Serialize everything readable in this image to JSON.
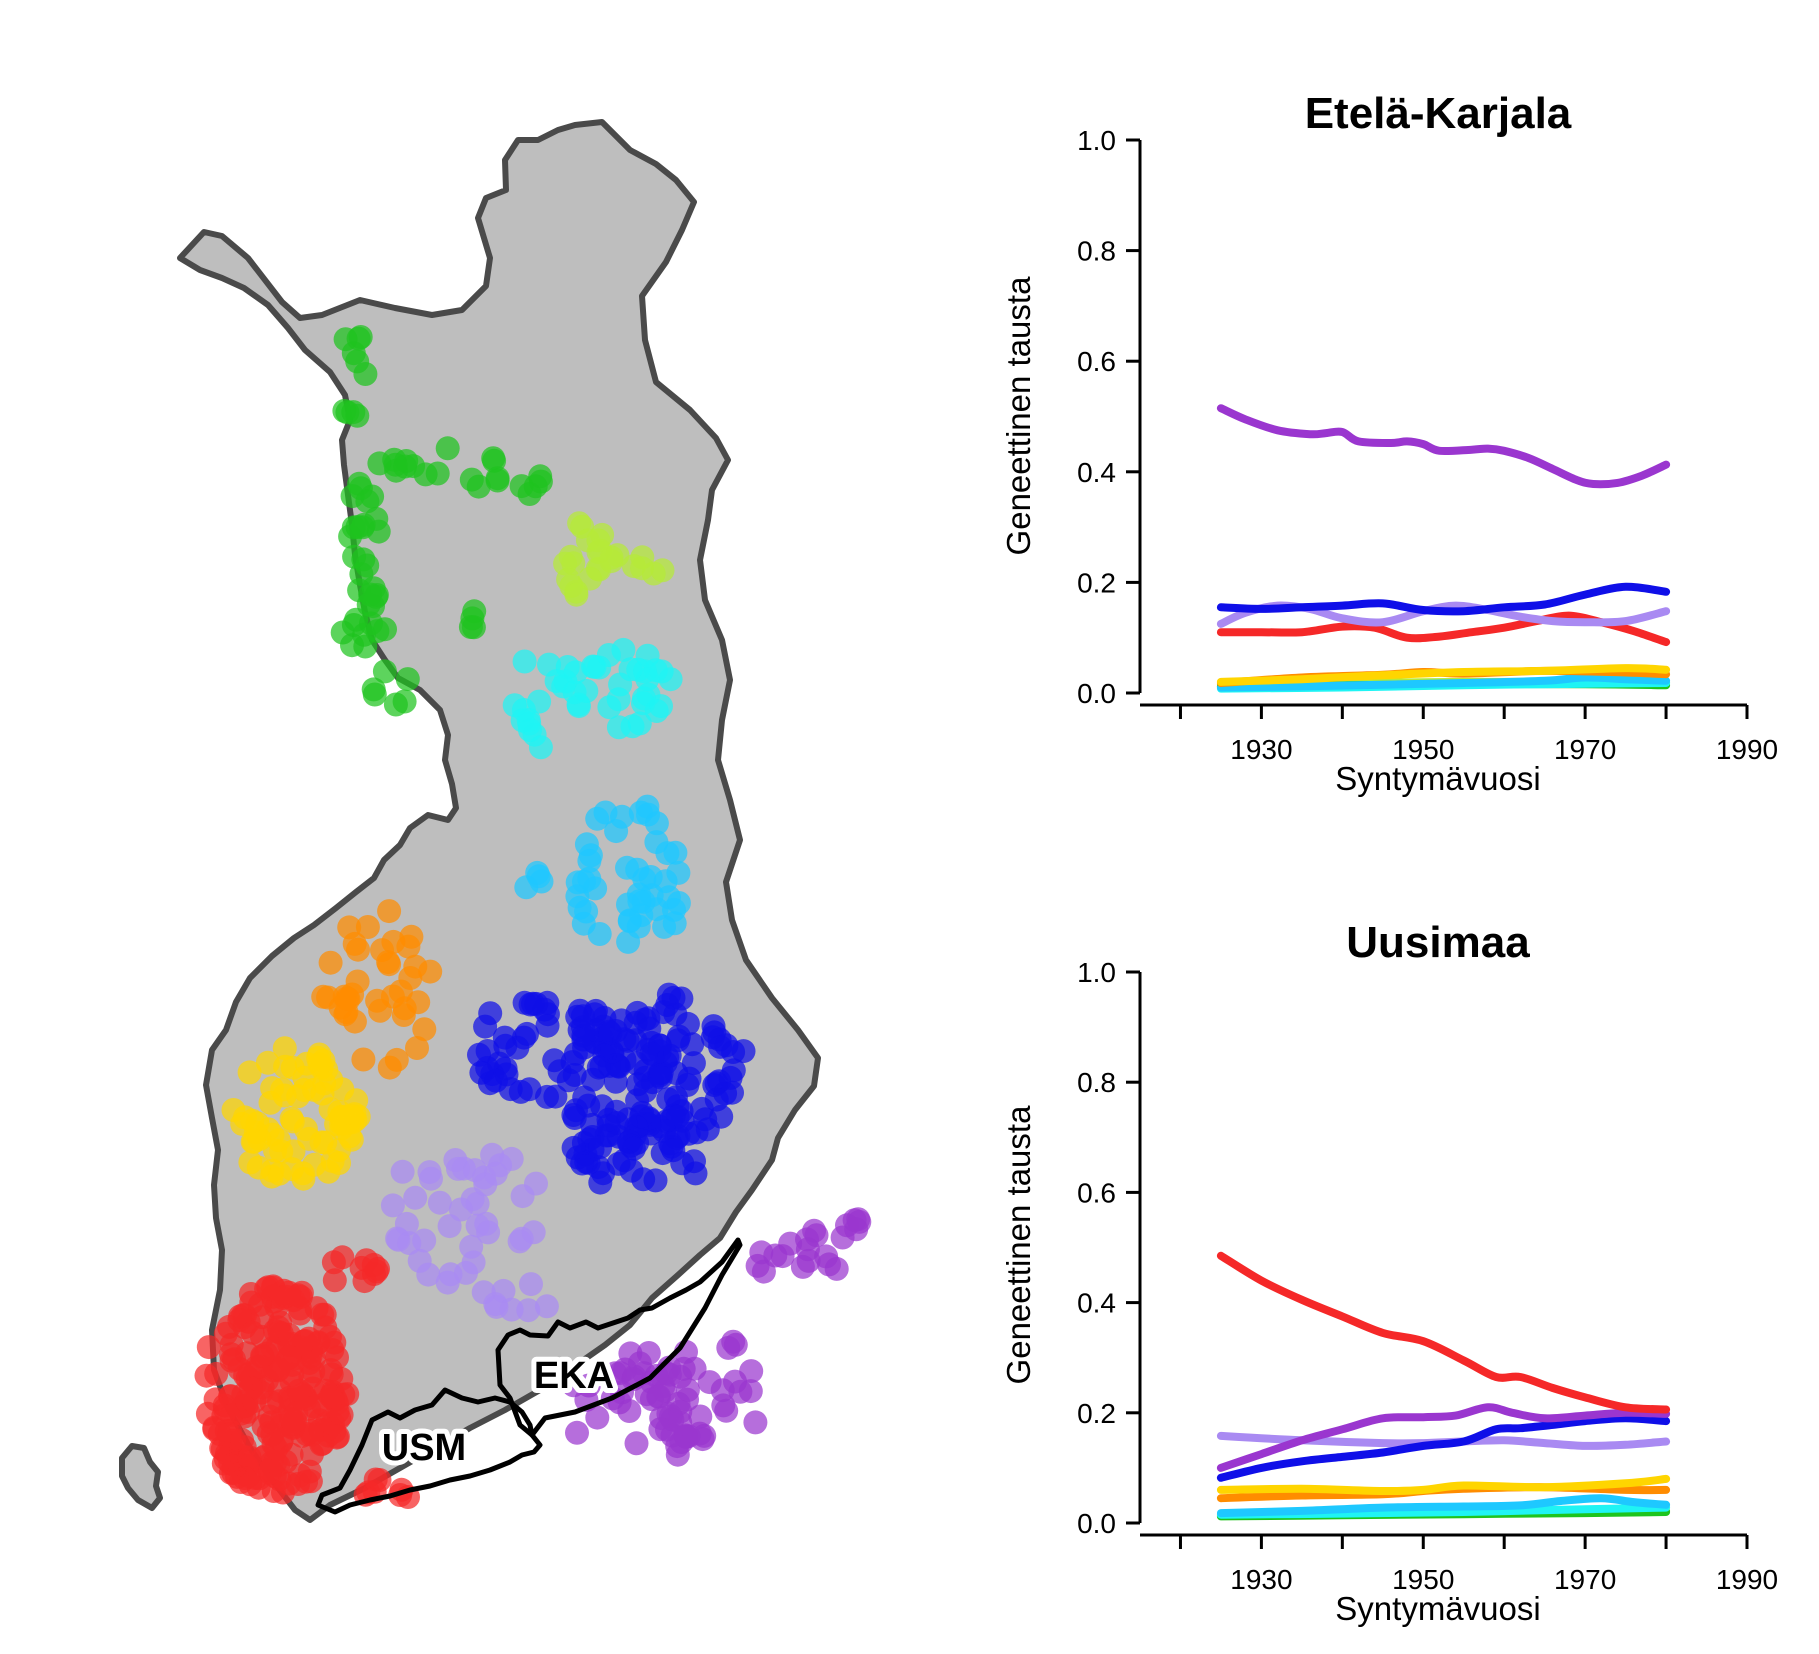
{
  "map": {
    "region_labels": [
      {
        "id": "eka",
        "text": "EKA"
      },
      {
        "id": "usm",
        "text": "USM"
      }
    ],
    "cluster_colors": {
      "green": "#1ec41e",
      "yellowgreen": "#b6ea38",
      "cyan": "#1ff4f4",
      "skyblue": "#1ec8ff",
      "orange": "#ff8c00",
      "gold": "#ffd500",
      "blue": "#0f0fe8",
      "lavender": "#a98af2",
      "red": "#f52828",
      "purple": "#9a36cf"
    },
    "land_color": "#bebebe",
    "border_color": "#4a4a4a"
  },
  "chart_data": [
    {
      "type": "line",
      "title": "Etelä-Karjala",
      "xlabel": "Syntymävuosi",
      "ylabel": "Geneettinen tausta",
      "xlim": [
        1915,
        1990
      ],
      "ylim": [
        0,
        1
      ],
      "xticks": [
        1930,
        1950,
        1970,
        1990
      ],
      "yticks": [
        "0.0",
        "0.2",
        "0.4",
        "0.6",
        "0.8",
        "1.0"
      ],
      "series": [
        {
          "color": "#9a36cf",
          "x": [
            1925,
            1928,
            1932,
            1936,
            1938,
            1940,
            1942,
            1946,
            1948,
            1950,
            1952,
            1956,
            1958,
            1960,
            1963,
            1966,
            1969,
            1971,
            1974,
            1977,
            1980
          ],
          "y": [
            0.515,
            0.495,
            0.475,
            0.468,
            0.47,
            0.472,
            0.455,
            0.452,
            0.455,
            0.45,
            0.438,
            0.44,
            0.442,
            0.438,
            0.425,
            0.405,
            0.385,
            0.378,
            0.38,
            0.393,
            0.413
          ]
        },
        {
          "color": "#0f0fe8",
          "x": [
            1925,
            1930,
            1935,
            1940,
            1945,
            1950,
            1955,
            1960,
            1965,
            1970,
            1975,
            1980
          ],
          "y": [
            0.155,
            0.152,
            0.155,
            0.158,
            0.162,
            0.15,
            0.148,
            0.155,
            0.16,
            0.178,
            0.192,
            0.183
          ]
        },
        {
          "color": "#a98af2",
          "x": [
            1925,
            1928,
            1932,
            1936,
            1940,
            1945,
            1950,
            1954,
            1958,
            1962,
            1966,
            1970,
            1975,
            1980
          ],
          "y": [
            0.125,
            0.145,
            0.158,
            0.152,
            0.135,
            0.128,
            0.148,
            0.158,
            0.15,
            0.138,
            0.13,
            0.128,
            0.13,
            0.148
          ]
        },
        {
          "color": "#f52828",
          "x": [
            1925,
            1930,
            1935,
            1940,
            1944,
            1948,
            1952,
            1956,
            1960,
            1964,
            1968,
            1972,
            1976,
            1980
          ],
          "y": [
            0.11,
            0.11,
            0.11,
            0.12,
            0.118,
            0.1,
            0.102,
            0.11,
            0.118,
            0.13,
            0.14,
            0.128,
            0.112,
            0.092
          ]
        },
        {
          "color": "#ffd500",
          "x": [
            1925,
            1935,
            1945,
            1955,
            1965,
            1975,
            1980
          ],
          "y": [
            0.02,
            0.025,
            0.032,
            0.038,
            0.04,
            0.045,
            0.042
          ]
        },
        {
          "color": "#ff8c00",
          "x": [
            1925,
            1935,
            1945,
            1950,
            1955,
            1965,
            1975,
            1980
          ],
          "y": [
            0.018,
            0.028,
            0.033,
            0.038,
            0.035,
            0.04,
            0.037,
            0.034
          ]
        },
        {
          "color": "#1ec8ff",
          "x": [
            1925,
            1935,
            1945,
            1955,
            1965,
            1970,
            1975,
            1980
          ],
          "y": [
            0.01,
            0.012,
            0.015,
            0.018,
            0.022,
            0.028,
            0.025,
            0.022
          ]
        },
        {
          "color": "#1ff4f4",
          "x": [
            1925,
            1940,
            1955,
            1965,
            1980
          ],
          "y": [
            0.008,
            0.01,
            0.014,
            0.016,
            0.018
          ]
        },
        {
          "color": "#1ec41e",
          "x": [
            1925,
            1940,
            1955,
            1970,
            1980
          ],
          "y": [
            0.012,
            0.014,
            0.016,
            0.016,
            0.014
          ]
        },
        {
          "color": "#b6ea38",
          "x": [
            1925,
            1940,
            1955,
            1970,
            1980
          ],
          "y": [
            0.015,
            0.018,
            0.02,
            0.02,
            0.019
          ]
        }
      ]
    },
    {
      "type": "line",
      "title": "Uusimaa",
      "xlabel": "Syntymävuosi",
      "ylabel": "Geneettinen tausta",
      "xlim": [
        1915,
        1990
      ],
      "ylim": [
        0,
        1
      ],
      "xticks": [
        1930,
        1950,
        1970,
        1990
      ],
      "yticks": [
        "0.0",
        "0.2",
        "0.4",
        "0.6",
        "0.8",
        "1.0"
      ],
      "series": [
        {
          "color": "#f52828",
          "x": [
            1925,
            1930,
            1935,
            1940,
            1945,
            1950,
            1955,
            1959,
            1962,
            1966,
            1970,
            1975,
            1980
          ],
          "y": [
            0.485,
            0.44,
            0.405,
            0.375,
            0.345,
            0.33,
            0.295,
            0.265,
            0.265,
            0.245,
            0.228,
            0.21,
            0.206
          ]
        },
        {
          "color": "#9a36cf",
          "x": [
            1925,
            1930,
            1935,
            1940,
            1945,
            1950,
            1954,
            1958,
            1961,
            1965,
            1970,
            1975,
            1980
          ],
          "y": [
            0.1,
            0.125,
            0.15,
            0.17,
            0.19,
            0.192,
            0.195,
            0.21,
            0.2,
            0.19,
            0.195,
            0.2,
            0.198
          ]
        },
        {
          "color": "#0f0fe8",
          "x": [
            1925,
            1930,
            1935,
            1940,
            1945,
            1950,
            1955,
            1959,
            1962,
            1966,
            1970,
            1975,
            1980
          ],
          "y": [
            0.082,
            0.1,
            0.112,
            0.12,
            0.128,
            0.14,
            0.148,
            0.17,
            0.172,
            0.178,
            0.185,
            0.19,
            0.185
          ]
        },
        {
          "color": "#a98af2",
          "x": [
            1925,
            1935,
            1945,
            1950,
            1955,
            1960,
            1965,
            1970,
            1975,
            1980
          ],
          "y": [
            0.158,
            0.15,
            0.145,
            0.145,
            0.148,
            0.15,
            0.145,
            0.14,
            0.142,
            0.148
          ]
        },
        {
          "color": "#ffd500",
          "x": [
            1925,
            1935,
            1945,
            1950,
            1955,
            1965,
            1975,
            1980
          ],
          "y": [
            0.06,
            0.062,
            0.058,
            0.06,
            0.068,
            0.065,
            0.072,
            0.08
          ]
        },
        {
          "color": "#ff8c00",
          "x": [
            1925,
            1935,
            1945,
            1950,
            1955,
            1965,
            1975,
            1980
          ],
          "y": [
            0.045,
            0.05,
            0.052,
            0.058,
            0.062,
            0.065,
            0.06,
            0.06
          ]
        },
        {
          "color": "#1ec8ff",
          "x": [
            1925,
            1935,
            1945,
            1955,
            1962,
            1967,
            1972,
            1976,
            1980
          ],
          "y": [
            0.018,
            0.022,
            0.028,
            0.03,
            0.032,
            0.04,
            0.045,
            0.038,
            0.033
          ]
        },
        {
          "color": "#1ff4f4",
          "x": [
            1925,
            1940,
            1955,
            1970,
            1980
          ],
          "y": [
            0.015,
            0.017,
            0.02,
            0.025,
            0.028
          ]
        },
        {
          "color": "#1ec41e",
          "x": [
            1925,
            1940,
            1955,
            1970,
            1980
          ],
          "y": [
            0.012,
            0.014,
            0.016,
            0.018,
            0.02
          ]
        },
        {
          "color": "#b6ea38",
          "x": [
            1925,
            1940,
            1955,
            1970,
            1980
          ],
          "y": [
            0.014,
            0.016,
            0.018,
            0.02,
            0.022
          ]
        }
      ]
    }
  ]
}
